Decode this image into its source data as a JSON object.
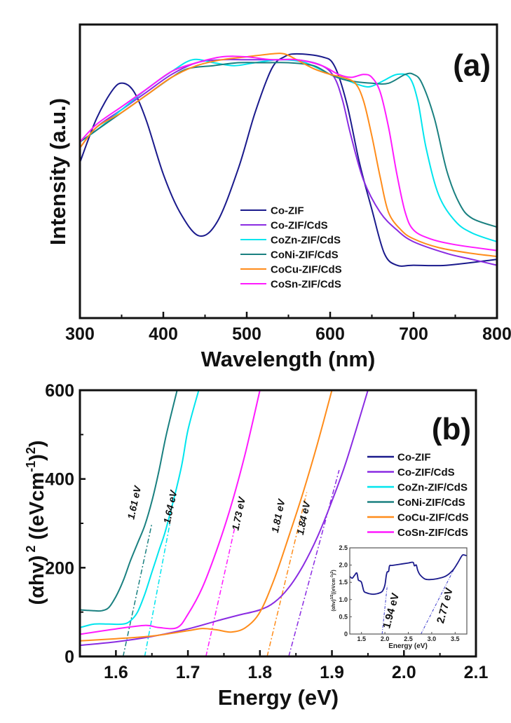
{
  "chart_data": [
    {
      "panel": "a",
      "type": "line",
      "panel_label": "(a)",
      "title": "",
      "xlabel": "Wavelength (nm)",
      "ylabel": "Intensity (a.u.)",
      "xlim": [
        300,
        800
      ],
      "ylim": [
        0,
        1
      ],
      "xticks": [
        300,
        400,
        500,
        600,
        700,
        800
      ],
      "xtick_labels": [
        "300",
        "400",
        "500",
        "600",
        "700",
        "800"
      ],
      "x_minor_ticks": [
        350,
        450,
        550,
        650,
        750
      ],
      "yticks_shown": false,
      "grid": false,
      "legend_position": "bottom-center",
      "series": [
        {
          "name": "Co-ZIF",
          "color": "#1a1a8c",
          "x": [
            300,
            320,
            340,
            352,
            365,
            380,
            400,
            420,
            443,
            465,
            490,
            510,
            530,
            545,
            560,
            590,
            605,
            620,
            635,
            650,
            665,
            680,
            700,
            740,
            800
          ],
          "y": [
            0.53,
            0.68,
            0.78,
            0.8,
            0.77,
            0.67,
            0.49,
            0.36,
            0.28,
            0.33,
            0.51,
            0.7,
            0.85,
            0.89,
            0.9,
            0.89,
            0.86,
            0.73,
            0.53,
            0.37,
            0.22,
            0.18,
            0.18,
            0.18,
            0.2
          ]
        },
        {
          "name": "Co-ZIF/CdS",
          "color": "#8a2be2",
          "x": [
            300,
            320,
            350,
            380,
            410,
            440,
            470,
            500,
            530,
            560,
            590,
            605,
            615,
            625,
            640,
            660,
            680,
            700,
            740,
            770,
            800
          ],
          "y": [
            0.58,
            0.65,
            0.71,
            0.77,
            0.83,
            0.87,
            0.88,
            0.88,
            0.88,
            0.88,
            0.86,
            0.82,
            0.74,
            0.62,
            0.47,
            0.36,
            0.3,
            0.26,
            0.22,
            0.2,
            0.18
          ]
        },
        {
          "name": "CoZn-ZIF/CdS",
          "color": "#00e5ee",
          "x": [
            300,
            320,
            350,
            380,
            410,
            435,
            460,
            485,
            510,
            540,
            570,
            600,
            620,
            640,
            650,
            665,
            680,
            695,
            705,
            715,
            730,
            750,
            770,
            800
          ],
          "y": [
            0.6,
            0.64,
            0.71,
            0.78,
            0.84,
            0.88,
            0.87,
            0.86,
            0.87,
            0.88,
            0.87,
            0.83,
            0.81,
            0.79,
            0.79,
            0.81,
            0.83,
            0.82,
            0.74,
            0.58,
            0.42,
            0.33,
            0.29,
            0.26
          ]
        },
        {
          "name": "CoNi-ZIF/CdS",
          "color": "#1a8080",
          "x": [
            300,
            320,
            350,
            380,
            410,
            430,
            460,
            490,
            520,
            550,
            580,
            600,
            620,
            650,
            670,
            690,
            700,
            710,
            725,
            740,
            755,
            770,
            800
          ],
          "y": [
            0.6,
            0.64,
            0.7,
            0.76,
            0.82,
            0.85,
            0.86,
            0.87,
            0.87,
            0.87,
            0.86,
            0.83,
            0.81,
            0.8,
            0.8,
            0.83,
            0.83,
            0.8,
            0.68,
            0.5,
            0.39,
            0.34,
            0.31
          ]
        },
        {
          "name": "CoCu-ZIF/CdS",
          "color": "#ff8c1a",
          "x": [
            300,
            320,
            350,
            380,
            410,
            440,
            470,
            500,
            530,
            545,
            560,
            580,
            600,
            615,
            630,
            640,
            650,
            660,
            670,
            685,
            700,
            730,
            770,
            800
          ],
          "y": [
            0.58,
            0.65,
            0.7,
            0.76,
            0.82,
            0.86,
            0.88,
            0.89,
            0.9,
            0.9,
            0.88,
            0.85,
            0.83,
            0.82,
            0.8,
            0.74,
            0.62,
            0.48,
            0.36,
            0.3,
            0.27,
            0.24,
            0.22,
            0.21
          ]
        },
        {
          "name": "CoSn-ZIF/CdS",
          "color": "#ff1aff",
          "x": [
            300,
            320,
            350,
            380,
            410,
            440,
            470,
            500,
            530,
            560,
            590,
            610,
            625,
            640,
            650,
            660,
            670,
            680,
            690,
            700,
            720,
            750,
            800
          ],
          "y": [
            0.6,
            0.66,
            0.72,
            0.78,
            0.84,
            0.87,
            0.89,
            0.89,
            0.88,
            0.88,
            0.86,
            0.83,
            0.82,
            0.83,
            0.82,
            0.77,
            0.65,
            0.49,
            0.36,
            0.3,
            0.27,
            0.25,
            0.23
          ]
        }
      ]
    },
    {
      "panel": "b",
      "type": "line",
      "panel_label": "(b)",
      "title": "",
      "xlabel": "Energy (eV)",
      "ylabel_main": "(αhv)",
      "ylabel_sup1": "2",
      "ylabel_units": "((eVcm",
      "ylabel_sup2": "-1",
      "ylabel_close": ")",
      "ylabel_sup3": "2",
      "ylabel_end": ")",
      "xlim": [
        1.55,
        2.1
      ],
      "ylim": [
        0,
        600
      ],
      "xticks": [
        1.6,
        1.7,
        1.8,
        1.9,
        2.0,
        2.1
      ],
      "xtick_labels": [
        "1.6",
        "1.7",
        "1.8",
        "1.9",
        "2.0",
        "2.1"
      ],
      "x_minor_ticks": [
        1.65,
        1.75,
        1.85,
        1.95,
        2.05
      ],
      "yticks": [
        0,
        200,
        400,
        600
      ],
      "ytick_labels": [
        "0",
        "200",
        "400",
        "600"
      ],
      "y_minor_ticks": [
        100,
        300,
        500
      ],
      "grid": false,
      "legend_position": "right",
      "series": [
        {
          "name": "Co-ZIF",
          "color": "#1a1a8c",
          "x": [],
          "y": []
        },
        {
          "name": "Co-ZIF/CdS",
          "color": "#8a2be2",
          "x": [
            1.55,
            1.6,
            1.65,
            1.7,
            1.74,
            1.77,
            1.8,
            1.82,
            1.84,
            1.86,
            1.88,
            1.9,
            1.92,
            1.95
          ],
          "y": [
            25,
            33,
            45,
            62,
            80,
            93,
            105,
            122,
            155,
            205,
            270,
            350,
            440,
            600
          ]
        },
        {
          "name": "CoZn-ZIF/CdS",
          "color": "#00e5ee",
          "x": [
            1.55,
            1.57,
            1.59,
            1.61,
            1.62,
            1.63,
            1.64,
            1.65,
            1.66,
            1.67,
            1.69,
            1.7,
            1.715
          ],
          "y": [
            65,
            73,
            73,
            73,
            80,
            100,
            140,
            190,
            240,
            290,
            420,
            510,
            600
          ]
        },
        {
          "name": "CoNi-ZIF/CdS",
          "color": "#1a8080",
          "x": [
            1.55,
            1.57,
            1.58,
            1.59,
            1.6,
            1.61,
            1.62,
            1.63,
            1.64,
            1.65,
            1.66,
            1.67,
            1.685
          ],
          "y": [
            105,
            103,
            103,
            110,
            135,
            170,
            215,
            255,
            295,
            350,
            420,
            500,
            600
          ]
        },
        {
          "name": "CoCu-ZIF/CdS",
          "color": "#ff8c1a",
          "x": [
            1.55,
            1.6,
            1.65,
            1.7,
            1.72,
            1.74,
            1.76,
            1.78,
            1.8,
            1.82,
            1.84,
            1.86,
            1.88,
            1.9
          ],
          "y": [
            35,
            40,
            46,
            58,
            63,
            60,
            55,
            65,
            100,
            175,
            270,
            370,
            480,
            600
          ]
        },
        {
          "name": "CoSn-ZIF/CdS",
          "color": "#ff1aff",
          "x": [
            1.55,
            1.6,
            1.64,
            1.66,
            1.685,
            1.7,
            1.72,
            1.74,
            1.76,
            1.78,
            1.8
          ],
          "y": [
            50,
            62,
            70,
            65,
            65,
            95,
            155,
            240,
            340,
            460,
            600
          ]
        }
      ],
      "tangent_lines": [
        {
          "series": "CoNi-ZIF/CdS",
          "color": "#1a8080",
          "x0": 1.61,
          "y0": 0,
          "x1": 1.65,
          "y1": 300
        },
        {
          "series": "CoZn-ZIF/CdS",
          "color": "#00e5ee",
          "x0": 1.64,
          "y0": 0,
          "x1": 1.675,
          "y1": 300
        },
        {
          "series": "CoSn-ZIF/CdS",
          "color": "#ff1aff",
          "x0": 1.725,
          "y0": 0,
          "x1": 1.765,
          "y1": 290
        },
        {
          "series": "CoCu-ZIF/CdS",
          "color": "#ff8c1a",
          "x0": 1.81,
          "y0": 0,
          "x1": 1.865,
          "y1": 370
        },
        {
          "series": "Co-ZIF/CdS",
          "color": "#8a2be2",
          "x0": 1.84,
          "y0": 0,
          "x1": 1.91,
          "y1": 420
        }
      ],
      "annotations": [
        {
          "text": "1.61 eV",
          "x": 1.63,
          "y": 345
        },
        {
          "text": "1.64 eV",
          "x": 1.68,
          "y": 335
        },
        {
          "text": "1.73 eV",
          "x": 1.775,
          "y": 320
        },
        {
          "text": "1.81 eV",
          "x": 1.83,
          "y": 315
        },
        {
          "text": "1.84 eV",
          "x": 1.865,
          "y": 310
        }
      ]
    },
    {
      "panel": "b-inset",
      "type": "line",
      "title": "",
      "xlabel": "Energy (eV)",
      "ylabel": "(αhv)^1/2((eVcm^-1)^2)",
      "ylabel_main": "(αhv)",
      "ylabel_sup1": "1/2",
      "ylabel_units": "((eVcm",
      "ylabel_sup2": "-1",
      "ylabel_close": ")",
      "ylabel_sup3": "2",
      "ylabel_end": ")",
      "xlim": [
        1.25,
        3.75
      ],
      "ylim": [
        0,
        2.5
      ],
      "xticks": [
        1.5,
        2.0,
        2.5,
        3.0,
        3.5
      ],
      "xtick_labels": [
        "1.5",
        "2.0",
        "2.5",
        "3.0",
        "3.5"
      ],
      "yticks": [
        0,
        0.5,
        1.0,
        1.5,
        2.0,
        2.5
      ],
      "ytick_labels": [
        "0",
        "0.5",
        "1.0",
        "1.5",
        "2.0",
        "2.5"
      ],
      "grid": false,
      "series": [
        {
          "name": "Co-ZIF",
          "color": "#1a1a8c",
          "x": [
            1.25,
            1.3,
            1.35,
            1.4,
            1.43,
            1.45,
            1.5,
            1.55,
            1.6,
            1.7,
            1.8,
            1.9,
            1.95,
            2.0,
            2.03,
            2.05,
            2.08,
            2.1,
            2.15,
            2.3,
            2.5,
            2.6,
            2.63,
            2.67,
            2.7,
            2.75,
            2.85,
            2.95,
            3.1,
            3.3,
            3.45,
            3.55,
            3.65,
            3.7,
            3.75
          ],
          "y": [
            1.67,
            1.62,
            1.7,
            1.77,
            1.58,
            1.55,
            1.5,
            1.25,
            1.2,
            1.16,
            1.16,
            1.2,
            1.25,
            1.42,
            1.7,
            1.8,
            1.82,
            1.98,
            1.99,
            2.02,
            2.06,
            2.08,
            1.98,
            2.0,
            1.85,
            1.72,
            1.6,
            1.58,
            1.6,
            1.68,
            1.85,
            2.05,
            2.28,
            2.29,
            2.27
          ]
        }
      ],
      "tangent_lines": [
        {
          "color": "#3a3acc",
          "x0": 1.94,
          "y0": 0,
          "x1": 2.05,
          "y1": 1.4
        },
        {
          "color": "#3a3acc",
          "x0": 2.77,
          "y0": 0,
          "x1": 3.5,
          "y1": 1.95
        }
      ],
      "annotations": [
        {
          "text": "1.94 eV",
          "x": 2.2,
          "y": 0.65
        },
        {
          "text": "2.77 eV",
          "x": 3.35,
          "y": 0.8
        }
      ]
    }
  ]
}
